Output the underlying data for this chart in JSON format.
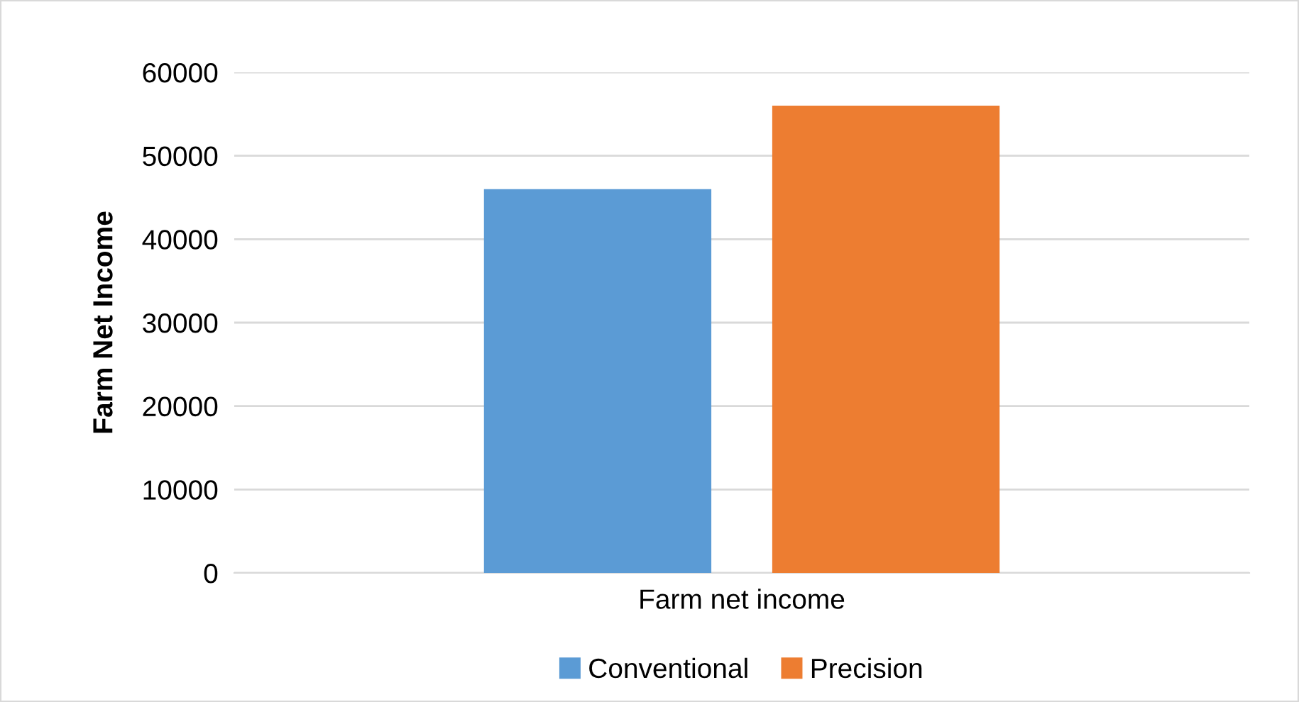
{
  "chart_data": {
    "type": "bar",
    "ylabel": "Farm Net Income",
    "categories": [
      "Farm net income"
    ],
    "series": [
      {
        "name": "Conventional",
        "color": "#5b9bd5",
        "values": [
          46000
        ]
      },
      {
        "name": "Precision",
        "color": "#ed7d31",
        "values": [
          56000
        ]
      }
    ],
    "ylim": [
      0,
      60000
    ],
    "yticks": [
      0,
      10000,
      20000,
      30000,
      40000,
      50000,
      60000
    ],
    "grid": "y",
    "legend": "bottom"
  }
}
